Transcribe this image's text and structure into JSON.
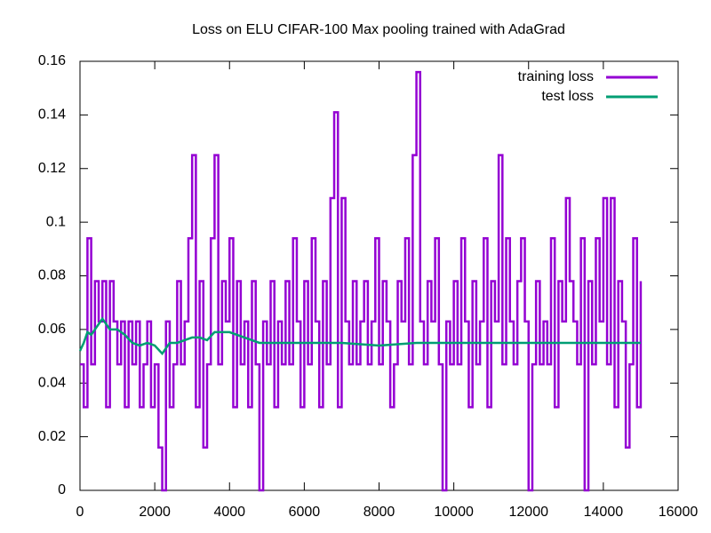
{
  "chart_data": {
    "type": "line",
    "title": "Loss on ELU CIFAR-100 Max pooling trained with AdaGrad",
    "xlim": [
      0,
      16000
    ],
    "xticks": [
      0,
      2000,
      4000,
      6000,
      8000,
      10000,
      12000,
      14000,
      16000
    ],
    "ylim": [
      0,
      0.16
    ],
    "yticks": [
      0,
      0.02,
      0.04,
      0.06,
      0.08,
      0.1,
      0.12,
      0.14,
      0.16
    ],
    "grid": false,
    "legend": "top-right",
    "series": [
      {
        "name": "training loss",
        "color": "#9400d3",
        "step": true,
        "x": [
          0,
          100,
          200,
          300,
          400,
          500,
          600,
          700,
          800,
          900,
          1000,
          1100,
          1200,
          1300,
          1400,
          1500,
          1600,
          1700,
          1800,
          1900,
          2000,
          2100,
          2200,
          2300,
          2400,
          2500,
          2600,
          2700,
          2800,
          2900,
          3000,
          3100,
          3200,
          3300,
          3400,
          3500,
          3600,
          3700,
          3800,
          3900,
          4000,
          4100,
          4200,
          4300,
          4400,
          4500,
          4600,
          4700,
          4800,
          4900,
          5000,
          5100,
          5200,
          5300,
          5400,
          5500,
          5600,
          5700,
          5800,
          5900,
          6000,
          6100,
          6200,
          6300,
          6400,
          6500,
          6600,
          6700,
          6800,
          6900,
          7000,
          7100,
          7200,
          7300,
          7400,
          7500,
          7600,
          7700,
          7800,
          7900,
          8000,
          8100,
          8200,
          8300,
          8400,
          8500,
          8600,
          8700,
          8800,
          8900,
          9000,
          9100,
          9200,
          9300,
          9400,
          9500,
          9600,
          9700,
          9800,
          9900,
          10000,
          10100,
          10200,
          10300,
          10400,
          10500,
          10600,
          10700,
          10800,
          10900,
          11000,
          11100,
          11200,
          11300,
          11400,
          11500,
          11600,
          11700,
          11800,
          11900,
          12000,
          12100,
          12200,
          12300,
          12400,
          12500,
          12600,
          12700,
          12800,
          12900,
          13000,
          13100,
          13200,
          13300,
          13400,
          13500,
          13600,
          13700,
          13800,
          13900,
          14000,
          14100,
          14200,
          14300,
          14400,
          14500,
          14600,
          14700,
          14800,
          14900,
          15000
        ],
        "values": [
          0.047,
          0.031,
          0.094,
          0.047,
          0.078,
          0.063,
          0.078,
          0.031,
          0.078,
          0.063,
          0.047,
          0.063,
          0.031,
          0.063,
          0.047,
          0.063,
          0.031,
          0.047,
          0.063,
          0.031,
          0.047,
          0.016,
          0,
          0.063,
          0.031,
          0.047,
          0.078,
          0.047,
          0.063,
          0.094,
          0.125,
          0.031,
          0.078,
          0.016,
          0.047,
          0.094,
          0.125,
          0.047,
          0.078,
          0.063,
          0.094,
          0.031,
          0.078,
          0.047,
          0.063,
          0.031,
          0.078,
          0.047,
          0,
          0.063,
          0.047,
          0.078,
          0.031,
          0.063,
          0.047,
          0.078,
          0.047,
          0.094,
          0.063,
          0.031,
          0.078,
          0.047,
          0.094,
          0.063,
          0.031,
          0.078,
          0.047,
          0.109,
          0.141,
          0.031,
          0.109,
          0.063,
          0.047,
          0.078,
          0.047,
          0.063,
          0.078,
          0.047,
          0.063,
          0.094,
          0.047,
          0.078,
          0.063,
          0.031,
          0.047,
          0.078,
          0.063,
          0.094,
          0.047,
          0.125,
          0.156,
          0.063,
          0.047,
          0.078,
          0.063,
          0.094,
          0.047,
          0,
          0.063,
          0.047,
          0.078,
          0.047,
          0.094,
          0.063,
          0.031,
          0.078,
          0.047,
          0.063,
          0.094,
          0.031,
          0.078,
          0.063,
          0.125,
          0.047,
          0.094,
          0.063,
          0.047,
          0.078,
          0.094,
          0.063,
          0,
          0.047,
          0.078,
          0.047,
          0.063,
          0.047,
          0.094,
          0.031,
          0.078,
          0.063,
          0.109,
          0.078,
          0.063,
          0.047,
          0.094,
          0,
          0.078,
          0.047,
          0.094,
          0.063,
          0.109,
          0.047,
          0.109,
          0.031,
          0.078,
          0.063,
          0.016,
          0.047,
          0.094,
          0.031,
          0.078
        ]
      },
      {
        "name": "test loss",
        "color": "#009e73",
        "step": false,
        "x": [
          0,
          100,
          200,
          300,
          400,
          600,
          800,
          1000,
          1200,
          1400,
          1600,
          1800,
          2000,
          2200,
          2400,
          2600,
          2800,
          3000,
          3200,
          3400,
          3600,
          3800,
          4000,
          4200,
          4400,
          4600,
          4800,
          5000,
          6000,
          7000,
          8000,
          9000,
          10000,
          11000,
          12000,
          13000,
          14000,
          15000
        ],
        "values": [
          0.052,
          0.055,
          0.059,
          0.058,
          0.06,
          0.064,
          0.06,
          0.06,
          0.058,
          0.055,
          0.054,
          0.055,
          0.054,
          0.051,
          0.055,
          0.055,
          0.056,
          0.057,
          0.057,
          0.056,
          0.059,
          0.059,
          0.059,
          0.058,
          0.057,
          0.056,
          0.055,
          0.055,
          0.055,
          0.055,
          0.054,
          0.055,
          0.055,
          0.055,
          0.055,
          0.055,
          0.055,
          0.055
        ]
      }
    ]
  }
}
